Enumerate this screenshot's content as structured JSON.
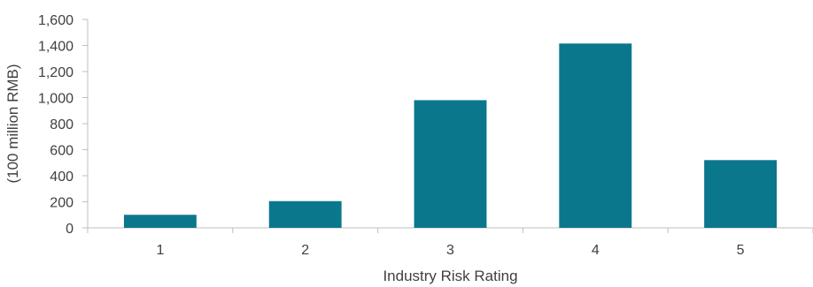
{
  "chart_data": {
    "type": "bar",
    "title": "",
    "xlabel": "Industry Risk Rating",
    "ylabel": "(100 million RMB)",
    "categories": [
      "1",
      "2",
      "3",
      "4",
      "5"
    ],
    "values": [
      100,
      205,
      980,
      1415,
      520
    ],
    "ylim": [
      0,
      1600
    ],
    "yticks": [
      0,
      200,
      400,
      600,
      800,
      1000,
      1200,
      1400,
      1600
    ],
    "ytick_labels": [
      "0",
      "200",
      "400",
      "600",
      "800",
      "1,000",
      "1,200",
      "1,400",
      "1,600"
    ],
    "grid": false,
    "legend": "none",
    "bar_color": "#0b778d",
    "axis_color": "#bfbfbf",
    "text_color": "#404040"
  }
}
